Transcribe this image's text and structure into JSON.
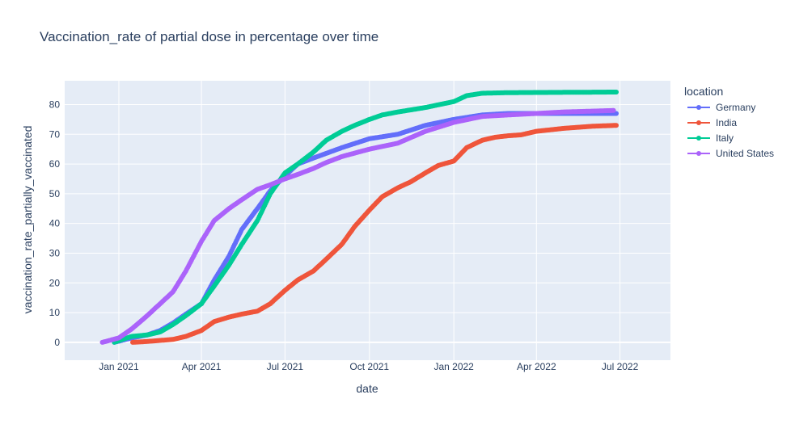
{
  "chart_data": {
    "type": "line",
    "title": "Vaccination_rate of partial dose in percentage over time",
    "xlabel": "date",
    "ylabel": "vaccination_rate_partially_vaccinated",
    "legend_title": "location",
    "legend_position": "right",
    "grid": true,
    "xlim": [
      "2020-11-03",
      "2022-08-25"
    ],
    "ylim": [
      -6,
      88
    ],
    "x_ticks": [
      {
        "date": "2021-01-01",
        "label": "Jan 2021"
      },
      {
        "date": "2021-04-01",
        "label": "Apr 2021"
      },
      {
        "date": "2021-07-01",
        "label": "Jul 2021"
      },
      {
        "date": "2021-10-01",
        "label": "Oct 2021"
      },
      {
        "date": "2022-01-01",
        "label": "Jan 2022"
      },
      {
        "date": "2022-04-01",
        "label": "Apr 2022"
      },
      {
        "date": "2022-07-01",
        "label": "Jul 2022"
      }
    ],
    "y_ticks": [
      0,
      10,
      20,
      30,
      40,
      50,
      60,
      70,
      80
    ],
    "series": [
      {
        "name": "Germany",
        "color": "#636efa",
        "points": [
          [
            "2020-12-27",
            0
          ],
          [
            "2021-01-15",
            1.5
          ],
          [
            "2021-02-01",
            2.5
          ],
          [
            "2021-02-15",
            4
          ],
          [
            "2021-03-01",
            6.5
          ],
          [
            "2021-03-15",
            9.5
          ],
          [
            "2021-04-01",
            13
          ],
          [
            "2021-04-15",
            21
          ],
          [
            "2021-05-01",
            29
          ],
          [
            "2021-05-15",
            38
          ],
          [
            "2021-06-01",
            45
          ],
          [
            "2021-06-15",
            51
          ],
          [
            "2021-07-01",
            56
          ],
          [
            "2021-07-15",
            60
          ],
          [
            "2021-08-01",
            62
          ],
          [
            "2021-09-01",
            65.5
          ],
          [
            "2021-10-01",
            68.5
          ],
          [
            "2021-11-01",
            70
          ],
          [
            "2021-12-01",
            73
          ],
          [
            "2022-01-01",
            75
          ],
          [
            "2022-02-01",
            76.5
          ],
          [
            "2022-03-01",
            77
          ],
          [
            "2022-04-01",
            77
          ],
          [
            "2022-05-01",
            77
          ],
          [
            "2022-06-27",
            77
          ]
        ]
      },
      {
        "name": "India",
        "color": "#ef553b",
        "points": [
          [
            "2021-01-16",
            0
          ],
          [
            "2021-02-01",
            0.3
          ],
          [
            "2021-03-01",
            1
          ],
          [
            "2021-03-15",
            2
          ],
          [
            "2021-04-01",
            4
          ],
          [
            "2021-04-15",
            7
          ],
          [
            "2021-05-01",
            8.5
          ],
          [
            "2021-05-15",
            9.5
          ],
          [
            "2021-06-01",
            10.5
          ],
          [
            "2021-06-15",
            13
          ],
          [
            "2021-07-01",
            17.5
          ],
          [
            "2021-07-15",
            21
          ],
          [
            "2021-08-01",
            24
          ],
          [
            "2021-08-15",
            28
          ],
          [
            "2021-09-01",
            33
          ],
          [
            "2021-09-15",
            39
          ],
          [
            "2021-10-01",
            44.5
          ],
          [
            "2021-10-15",
            49
          ],
          [
            "2021-11-01",
            52
          ],
          [
            "2021-11-15",
            54
          ],
          [
            "2021-12-01",
            57
          ],
          [
            "2021-12-15",
            59.5
          ],
          [
            "2022-01-01",
            61
          ],
          [
            "2022-01-15",
            65.5
          ],
          [
            "2022-02-01",
            68
          ],
          [
            "2022-02-15",
            69
          ],
          [
            "2022-03-01",
            69.5
          ],
          [
            "2022-03-15",
            69.8
          ],
          [
            "2022-04-01",
            71
          ],
          [
            "2022-05-01",
            72
          ],
          [
            "2022-06-01",
            72.7
          ],
          [
            "2022-06-27",
            73
          ]
        ]
      },
      {
        "name": "Italy",
        "color": "#00cc96",
        "points": [
          [
            "2020-12-27",
            0
          ],
          [
            "2021-01-05",
            1
          ],
          [
            "2021-01-15",
            2
          ],
          [
            "2021-02-01",
            2.5
          ],
          [
            "2021-02-15",
            3.5
          ],
          [
            "2021-03-01",
            6
          ],
          [
            "2021-03-15",
            9
          ],
          [
            "2021-04-01",
            13
          ],
          [
            "2021-04-15",
            19
          ],
          [
            "2021-05-01",
            26
          ],
          [
            "2021-05-15",
            33
          ],
          [
            "2021-06-01",
            41
          ],
          [
            "2021-06-15",
            50
          ],
          [
            "2021-07-01",
            57
          ],
          [
            "2021-07-15",
            60
          ],
          [
            "2021-08-01",
            64
          ],
          [
            "2021-08-15",
            68
          ],
          [
            "2021-09-01",
            71
          ],
          [
            "2021-09-15",
            73
          ],
          [
            "2021-10-01",
            75
          ],
          [
            "2021-10-15",
            76.5
          ],
          [
            "2021-11-01",
            77.5
          ],
          [
            "2021-12-01",
            79
          ],
          [
            "2022-01-01",
            81
          ],
          [
            "2022-01-15",
            83
          ],
          [
            "2022-02-01",
            83.8
          ],
          [
            "2022-03-01",
            84
          ],
          [
            "2022-06-27",
            84.2
          ]
        ]
      },
      {
        "name": "United States",
        "color": "#ab63fa",
        "points": [
          [
            "2020-12-14",
            0
          ],
          [
            "2021-01-01",
            1.5
          ],
          [
            "2021-01-15",
            4.5
          ],
          [
            "2021-02-01",
            9
          ],
          [
            "2021-02-15",
            13
          ],
          [
            "2021-03-01",
            17
          ],
          [
            "2021-03-15",
            24
          ],
          [
            "2021-04-01",
            34
          ],
          [
            "2021-04-15",
            41
          ],
          [
            "2021-05-01",
            45
          ],
          [
            "2021-05-15",
            48
          ],
          [
            "2021-06-01",
            51.5
          ],
          [
            "2021-06-15",
            53
          ],
          [
            "2021-07-01",
            55
          ],
          [
            "2021-07-15",
            56.5
          ],
          [
            "2021-08-01",
            58.5
          ],
          [
            "2021-08-15",
            60.5
          ],
          [
            "2021-09-01",
            62.5
          ],
          [
            "2021-10-01",
            65
          ],
          [
            "2021-11-01",
            67
          ],
          [
            "2021-12-01",
            71
          ],
          [
            "2022-01-01",
            74
          ],
          [
            "2022-02-01",
            76
          ],
          [
            "2022-03-01",
            76.5
          ],
          [
            "2022-04-01",
            77
          ],
          [
            "2022-05-01",
            77.5
          ],
          [
            "2022-06-24",
            78
          ]
        ]
      }
    ]
  }
}
